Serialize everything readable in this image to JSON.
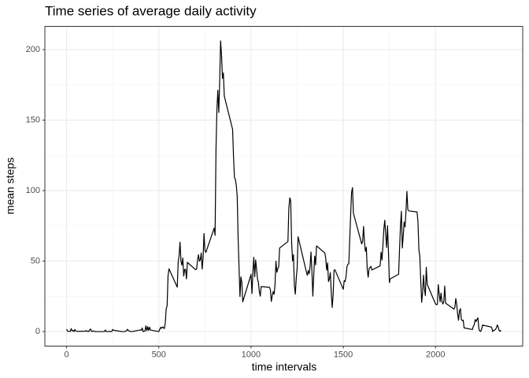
{
  "chart_data": {
    "type": "line",
    "title": "Time series of average daily activity",
    "x_label": "time intervals",
    "y_label": "mean steps",
    "color": "#000000",
    "grid": true,
    "xlim": [
      -117.75,
      2472.75
    ],
    "ylim": [
      -10.31,
      216.48
    ],
    "xticks": [
      0,
      500,
      1000,
      1500,
      2000
    ],
    "yticks": [
      0,
      50,
      100,
      150,
      200
    ],
    "x": [
      0,
      5,
      10,
      15,
      20,
      25,
      30,
      35,
      40,
      45,
      50,
      55,
      100,
      105,
      110,
      115,
      120,
      125,
      130,
      135,
      140,
      145,
      150,
      155,
      200,
      205,
      210,
      215,
      220,
      225,
      230,
      235,
      240,
      245,
      250,
      255,
      300,
      305,
      310,
      315,
      320,
      325,
      330,
      335,
      340,
      345,
      350,
      355,
      400,
      405,
      410,
      415,
      420,
      425,
      430,
      435,
      440,
      445,
      450,
      455,
      500,
      505,
      510,
      515,
      520,
      525,
      530,
      535,
      540,
      545,
      550,
      555,
      600,
      605,
      610,
      615,
      620,
      625,
      630,
      635,
      640,
      645,
      650,
      655,
      700,
      705,
      710,
      715,
      720,
      725,
      730,
      735,
      740,
      745,
      750,
      755,
      800,
      805,
      810,
      815,
      820,
      825,
      830,
      835,
      840,
      845,
      850,
      855,
      900,
      905,
      910,
      915,
      920,
      925,
      930,
      935,
      940,
      945,
      950,
      955,
      1000,
      1005,
      1010,
      1015,
      1020,
      1025,
      1030,
      1035,
      1040,
      1045,
      1050,
      1055,
      1100,
      1105,
      1110,
      1115,
      1120,
      1125,
      1130,
      1135,
      1140,
      1145,
      1150,
      1155,
      1200,
      1205,
      1210,
      1215,
      1220,
      1225,
      1230,
      1235,
      1240,
      1245,
      1250,
      1255,
      1300,
      1305,
      1310,
      1315,
      1320,
      1325,
      1330,
      1335,
      1340,
      1345,
      1350,
      1355,
      1400,
      1405,
      1410,
      1415,
      1420,
      1425,
      1430,
      1435,
      1440,
      1445,
      1450,
      1455,
      1500,
      1505,
      1510,
      1515,
      1520,
      1525,
      1530,
      1535,
      1540,
      1545,
      1550,
      1555,
      1600,
      1605,
      1610,
      1615,
      1620,
      1625,
      1630,
      1635,
      1640,
      1645,
      1650,
      1655,
      1700,
      1705,
      1710,
      1715,
      1720,
      1725,
      1730,
      1735,
      1740,
      1745,
      1750,
      1755,
      1800,
      1805,
      1810,
      1815,
      1820,
      1825,
      1830,
      1835,
      1840,
      1845,
      1850,
      1855,
      1900,
      1905,
      1910,
      1915,
      1920,
      1925,
      1930,
      1935,
      1940,
      1945,
      1950,
      1955,
      2000,
      2005,
      2010,
      2015,
      2020,
      2025,
      2030,
      2035,
      2040,
      2045,
      2050,
      2055,
      2100,
      2105,
      2110,
      2115,
      2120,
      2125,
      2130,
      2135,
      2140,
      2145,
      2150,
      2155,
      2200,
      2205,
      2210,
      2215,
      2220,
      2225,
      2230,
      2235,
      2240,
      2245,
      2250,
      2255,
      2300,
      2305,
      2310,
      2315,
      2320,
      2325,
      2330,
      2335,
      2340,
      2345,
      2350,
      2355
    ],
    "values": [
      1.72,
      0.34,
      0.13,
      0.15,
      0.08,
      2.09,
      0.53,
      0.87,
      0,
      1.47,
      0.3,
      0.13,
      0.32,
      0.68,
      0.15,
      0.34,
      0,
      1.11,
      1.83,
      0.17,
      0.17,
      0.38,
      0.26,
      0,
      0,
      0,
      1.13,
      0,
      0,
      0.13,
      0,
      0.23,
      0,
      0,
      1.55,
      0.94,
      0,
      0,
      0,
      0,
      0.21,
      0.62,
      1.62,
      0.58,
      0.49,
      0.08,
      0,
      0,
      1.19,
      0.94,
      2.57,
      0,
      0.34,
      0.36,
      4.11,
      0.66,
      3.49,
      0.83,
      3.11,
      1.11,
      0,
      1.57,
      3,
      2.25,
      3.32,
      2.96,
      2.09,
      6.06,
      16.02,
      18.34,
      39.45,
      44.49,
      31.49,
      49.26,
      53.77,
      63.45,
      49.96,
      47.08,
      52.15,
      39.34,
      44.02,
      44.17,
      37.36,
      49.04,
      43.81,
      44.38,
      50.51,
      54.51,
      49.92,
      50.98,
      55.68,
      44.32,
      52.26,
      69.55,
      57.85,
      56.15,
      73.38,
      68.21,
      129.43,
      157.53,
      171.15,
      155.4,
      177.3,
      206.17,
      195.92,
      179.57,
      183.4,
      167.02,
      143.45,
      124.04,
      109.11,
      108.11,
      103.72,
      95.96,
      66.21,
      45.23,
      24.79,
      38.75,
      34.98,
      21.06,
      40.57,
      26.98,
      42.42,
      52.66,
      38.92,
      50.79,
      44.28,
      37.42,
      34.7,
      28.34,
      25.09,
      31.94,
      31.36,
      29.68,
      21.32,
      25.55,
      28.38,
      26.47,
      33.43,
      49.98,
      42.04,
      44.6,
      46.04,
      59.26,
      63.87,
      87.7,
      94.85,
      92.77,
      63.4,
      50.17,
      54.47,
      32.42,
      26.53,
      37.74,
      45.06,
      67.28,
      42.34,
      39.89,
      43.26,
      40.98,
      46.25,
      56.43,
      42.75,
      25.13,
      39.96,
      53.55,
      47.32,
      60.81,
      55.75,
      51.96,
      43.58,
      48.7,
      35.47,
      37.55,
      41.85,
      27.51,
      17.11,
      26.08,
      43.62,
      43.77,
      30.02,
      36.08,
      35.49,
      38.85,
      45.96,
      47.75,
      48.13,
      65.32,
      82.91,
      98.66,
      102.11,
      83.96,
      62.13,
      64.13,
      74.55,
      63.17,
      56.91,
      59.77,
      43.87,
      38.57,
      44.66,
      45.45,
      46.21,
      43.68,
      46.62,
      56.3,
      50.72,
      61.23,
      72.72,
      78.94,
      68.94,
      59.66,
      75.09,
      56.51,
      34.77,
      37.45,
      40.68,
      58.02,
      74.7,
      85.32,
      59.26,
      67.77,
      77.7,
      74.25,
      85.34,
      99.45,
      86.58,
      85.6,
      84.87,
      77.83,
      58.04,
      53.36,
      36.32,
      20.72,
      27.4,
      40.02,
      30.21,
      25.55,
      45.66,
      33.53,
      19.62,
      19.02,
      19.34,
      33.34,
      26.81,
      21.17,
      27.3,
      21.34,
      19.55,
      21.32,
      32.3,
      20.15,
      15.94,
      17.23,
      23.45,
      19.25,
      12.45,
      8.02,
      14.66,
      16.3,
      8.68,
      7.79,
      8.13,
      2.62,
      1.45,
      3.68,
      4.81,
      8.51,
      7.08,
      8.7,
      9.75,
      2.21,
      0.32,
      0.11,
      1.6,
      4.6,
      3.3,
      2.85,
      0,
      0.83,
      0.96,
      1.58,
      2.6,
      4.7,
      3.3,
      0.64,
      0.23,
      1.08
    ]
  }
}
